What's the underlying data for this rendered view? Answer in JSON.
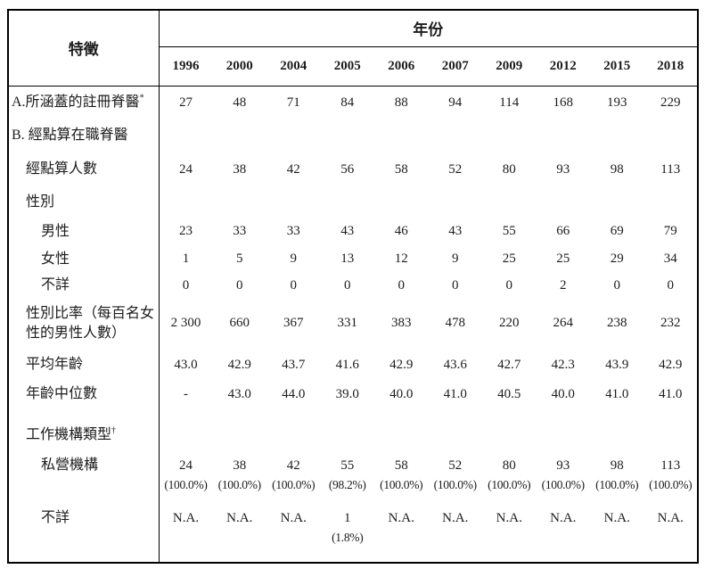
{
  "table": {
    "corner_label": "特徵",
    "year_group_label": "年份",
    "years": [
      "1996",
      "2000",
      "2004",
      "2005",
      "2006",
      "2007",
      "2009",
      "2012",
      "2015",
      "2018"
    ],
    "rows": {
      "covered": {
        "label": "A.所涵蓋的註冊脊醫",
        "sup": "*",
        "values": [
          "27",
          "48",
          "71",
          "84",
          "88",
          "94",
          "114",
          "168",
          "193",
          "229"
        ]
      },
      "enumerated_header": {
        "label": "B. 經點算在職脊醫"
      },
      "counted": {
        "label": "經點算人數",
        "values": [
          "24",
          "38",
          "42",
          "56",
          "58",
          "52",
          "80",
          "93",
          "98",
          "113"
        ]
      },
      "sex_header": {
        "label": "性別"
      },
      "male": {
        "label": "男性",
        "values": [
          "23",
          "33",
          "33",
          "43",
          "46",
          "43",
          "55",
          "66",
          "69",
          "79"
        ]
      },
      "female": {
        "label": "女性",
        "values": [
          "1",
          "5",
          "9",
          "13",
          "12",
          "9",
          "25",
          "25",
          "29",
          "34"
        ]
      },
      "sex_unknown": {
        "label": "不詳",
        "values": [
          "0",
          "0",
          "0",
          "0",
          "0",
          "0",
          "0",
          "2",
          "0",
          "0"
        ]
      },
      "sex_ratio": {
        "label": "性別比率（每百名女性的男性人數）",
        "values": [
          "2 300",
          "660",
          "367",
          "331",
          "383",
          "478",
          "220",
          "264",
          "238",
          "232"
        ]
      },
      "mean_age": {
        "label": "平均年齡",
        "values": [
          "43.0",
          "42.9",
          "43.7",
          "41.6",
          "42.9",
          "43.6",
          "42.7",
          "42.3",
          "43.9",
          "42.9"
        ]
      },
      "median_age": {
        "label": "年齡中位數",
        "values": [
          "-",
          "43.0",
          "44.0",
          "39.0",
          "40.0",
          "41.0",
          "40.5",
          "40.0",
          "41.0",
          "41.0"
        ]
      },
      "worktype_header": {
        "label": "工作機構類型",
        "sup": "†"
      },
      "private": {
        "label": "私營機構",
        "values": [
          "24",
          "38",
          "42",
          "55",
          "58",
          "52",
          "80",
          "93",
          "98",
          "113"
        ],
        "percents": [
          "(100.0%)",
          "(100.0%)",
          "(100.0%)",
          "(98.2%)",
          "(100.0%)",
          "(100.0%)",
          "(100.0%)",
          "(100.0%)",
          "(100.0%)",
          "(100.0%)"
        ]
      },
      "worktype_unknown": {
        "label": "不詳",
        "values": [
          "N.A.",
          "N.A.",
          "N.A.",
          "1",
          "N.A.",
          "N.A.",
          "N.A.",
          "N.A.",
          "N.A.",
          "N.A."
        ],
        "percents": [
          "",
          "",
          "",
          "(1.8%)",
          "",
          "",
          "",
          "",
          "",
          ""
        ]
      }
    }
  }
}
